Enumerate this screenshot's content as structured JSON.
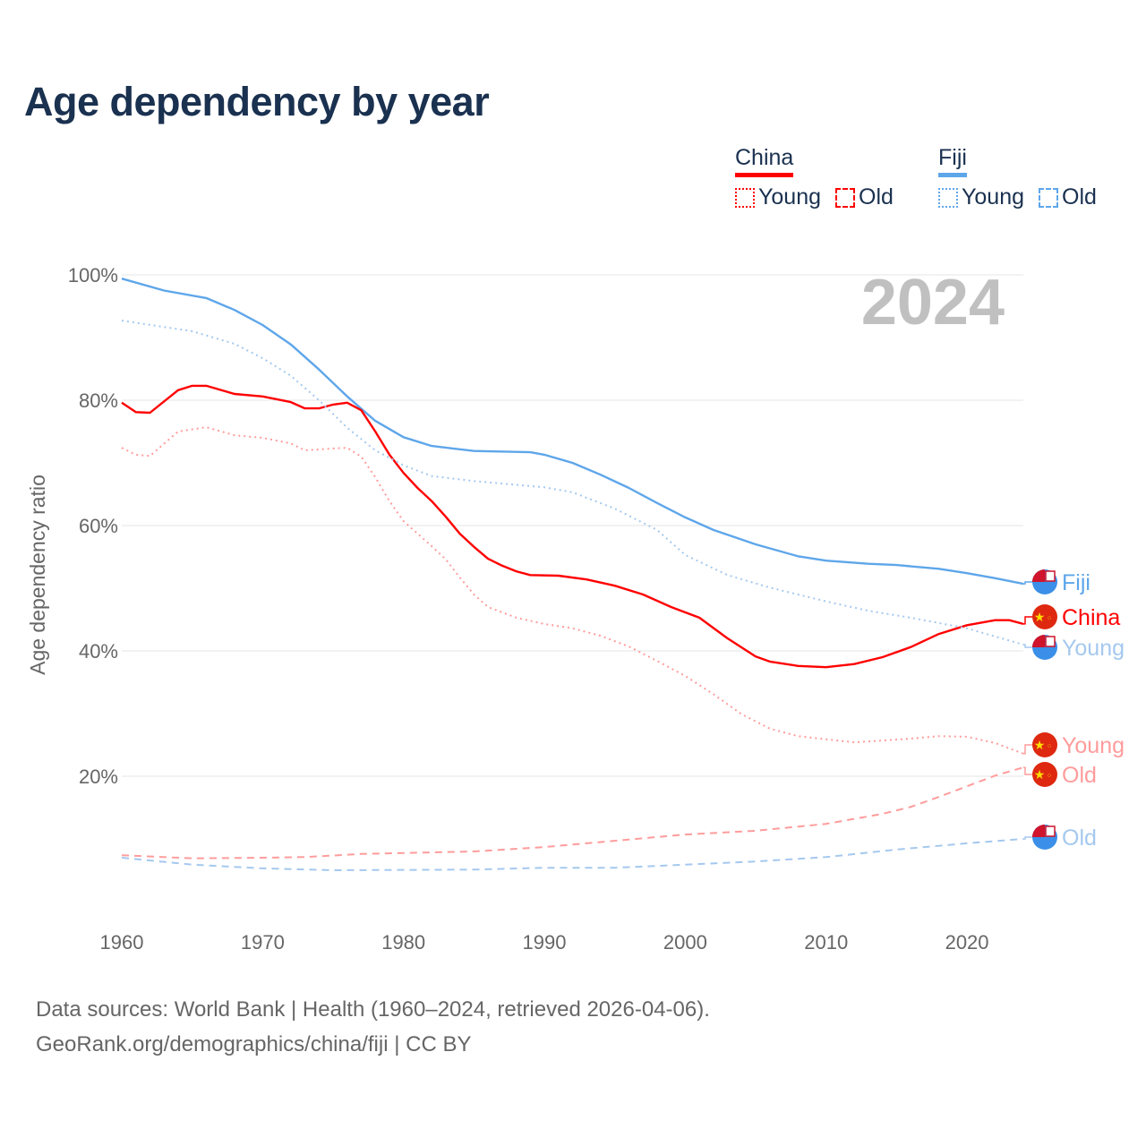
{
  "title": "Age dependency by year",
  "legend": {
    "groups": [
      {
        "name": "China",
        "color": "#ff0000",
        "light": "#ff9c9c",
        "items": [
          "Young",
          "Old"
        ]
      },
      {
        "name": "Fiji",
        "color": "#5ea6ea",
        "light": "#a5c8ef",
        "items": [
          "Young",
          "Old"
        ]
      }
    ]
  },
  "source": {
    "line1": "Data sources: World Bank | Health (1960–2024, retrieved 2026-04-06).",
    "line2": "GeoRank.org/demographics/china/fiji | CC BY"
  },
  "chart_data": {
    "type": "line",
    "title": "Age dependency by year",
    "xlabel": "",
    "ylabel": "Age dependency ratio",
    "xlim": [
      1960,
      2024
    ],
    "ylim": [
      0,
      100
    ],
    "x_ticks": [
      "1960",
      "1970",
      "1980",
      "1990",
      "2000",
      "2010",
      "2020"
    ],
    "y_ticks": [
      "20%",
      "40%",
      "60%",
      "80%",
      "100%"
    ],
    "grid": true,
    "year_watermark": "2024",
    "series": [
      {
        "name": "Fiji",
        "country": "Fiji",
        "label": "Fiji",
        "style": "solid",
        "color": "#5ea6ea",
        "points": [
          [
            1960,
            99.4
          ],
          [
            1963,
            97.5
          ],
          [
            1966,
            96.3
          ],
          [
            1968,
            94.4
          ],
          [
            1970,
            92
          ],
          [
            1972,
            88.9
          ],
          [
            1974,
            84.9
          ],
          [
            1976,
            80.6
          ],
          [
            1978,
            76.7
          ],
          [
            1980,
            74.1
          ],
          [
            1982,
            72.7
          ],
          [
            1985,
            71.9
          ],
          [
            1989,
            71.7
          ],
          [
            1990,
            71.3
          ],
          [
            1992,
            70
          ],
          [
            1994,
            68.1
          ],
          [
            1996,
            66
          ],
          [
            1998,
            63.6
          ],
          [
            2000,
            61.3
          ],
          [
            2002,
            59.3
          ],
          [
            2005,
            57
          ],
          [
            2008,
            55.1
          ],
          [
            2010,
            54.4
          ],
          [
            2013,
            53.9
          ],
          [
            2015,
            53.7
          ],
          [
            2018,
            53.1
          ],
          [
            2020,
            52.4
          ],
          [
            2022,
            51.6
          ],
          [
            2024,
            50.7
          ]
        ]
      },
      {
        "name": "China",
        "country": "China",
        "label": "China",
        "style": "solid",
        "color": "#ff0000",
        "points": [
          [
            1960,
            79.6
          ],
          [
            1961,
            78.1
          ],
          [
            1962,
            78
          ],
          [
            1964,
            81.6
          ],
          [
            1965,
            82.3
          ],
          [
            1966,
            82.3
          ],
          [
            1968,
            81
          ],
          [
            1970,
            80.6
          ],
          [
            1972,
            79.7
          ],
          [
            1973,
            78.7
          ],
          [
            1974,
            78.7
          ],
          [
            1975,
            79.3
          ],
          [
            1976,
            79.6
          ],
          [
            1977,
            78.4
          ],
          [
            1978,
            75
          ],
          [
            1979,
            71.3
          ],
          [
            1980,
            68.4
          ],
          [
            1981,
            66
          ],
          [
            1982,
            63.9
          ],
          [
            1983,
            61.4
          ],
          [
            1984,
            58.7
          ],
          [
            1985,
            56.6
          ],
          [
            1986,
            54.7
          ],
          [
            1987,
            53.6
          ],
          [
            1988,
            52.7
          ],
          [
            1989,
            52.1
          ],
          [
            1991,
            52
          ],
          [
            1993,
            51.4
          ],
          [
            1995,
            50.4
          ],
          [
            1997,
            49
          ],
          [
            1999,
            47
          ],
          [
            2001,
            45.3
          ],
          [
            2003,
            42
          ],
          [
            2005,
            39.1
          ],
          [
            2006,
            38.3
          ],
          [
            2008,
            37.6
          ],
          [
            2010,
            37.4
          ],
          [
            2012,
            37.9
          ],
          [
            2014,
            39
          ],
          [
            2016,
            40.6
          ],
          [
            2018,
            42.7
          ],
          [
            2020,
            44.1
          ],
          [
            2022,
            44.9
          ],
          [
            2023,
            44.9
          ],
          [
            2024,
            44.3
          ]
        ]
      },
      {
        "name": "Fiji Young",
        "country": "Fiji",
        "label": "Young",
        "style": "dotted",
        "color": "#a5c8ef",
        "points": [
          [
            1960,
            92.7
          ],
          [
            1965,
            91
          ],
          [
            1968,
            89
          ],
          [
            1970,
            86.7
          ],
          [
            1972,
            83.9
          ],
          [
            1974,
            80
          ],
          [
            1976,
            75.6
          ],
          [
            1978,
            72
          ],
          [
            1980,
            69.6
          ],
          [
            1982,
            67.9
          ],
          [
            1985,
            67.1
          ],
          [
            1990,
            66.1
          ],
          [
            1992,
            65.3
          ],
          [
            1995,
            62.7
          ],
          [
            1998,
            59.3
          ],
          [
            2000,
            55.3
          ],
          [
            2003,
            52.1
          ],
          [
            2006,
            50.1
          ],
          [
            2010,
            47.9
          ],
          [
            2013,
            46.4
          ],
          [
            2016,
            45.3
          ],
          [
            2020,
            43.6
          ],
          [
            2024,
            41
          ]
        ]
      },
      {
        "name": "China Young",
        "country": "China",
        "label": "Young",
        "style": "dotted",
        "color": "#ff9c9c",
        "points": [
          [
            1960,
            72.4
          ],
          [
            1961,
            71.3
          ],
          [
            1962,
            71.1
          ],
          [
            1964,
            75
          ],
          [
            1966,
            75.7
          ],
          [
            1968,
            74.4
          ],
          [
            1970,
            74
          ],
          [
            1972,
            73.1
          ],
          [
            1973,
            72
          ],
          [
            1975,
            72.3
          ],
          [
            1976,
            72.4
          ],
          [
            1977,
            71
          ],
          [
            1978,
            67.7
          ],
          [
            1979,
            63.9
          ],
          [
            1980,
            60.7
          ],
          [
            1982,
            56.7
          ],
          [
            1983,
            54.6
          ],
          [
            1984,
            51.7
          ],
          [
            1985,
            49
          ],
          [
            1986,
            47
          ],
          [
            1988,
            45.3
          ],
          [
            1990,
            44.3
          ],
          [
            1992,
            43.6
          ],
          [
            1994,
            42.4
          ],
          [
            1996,
            40.7
          ],
          [
            1998,
            38.4
          ],
          [
            2000,
            36
          ],
          [
            2002,
            33.1
          ],
          [
            2004,
            29.9
          ],
          [
            2006,
            27.6
          ],
          [
            2008,
            26.4
          ],
          [
            2010,
            25.9
          ],
          [
            2012,
            25.4
          ],
          [
            2014,
            25.7
          ],
          [
            2016,
            26
          ],
          [
            2018,
            26.4
          ],
          [
            2020,
            26.3
          ],
          [
            2022,
            25.3
          ],
          [
            2024,
            23.6
          ]
        ]
      },
      {
        "name": "China Old",
        "country": "China",
        "label": "Old",
        "style": "dashed",
        "color": "#ff9c9c",
        "points": [
          [
            1960,
            7.4
          ],
          [
            1965,
            6.9
          ],
          [
            1970,
            7
          ],
          [
            1973,
            7.1
          ],
          [
            1977,
            7.6
          ],
          [
            1985,
            8
          ],
          [
            1990,
            8.7
          ],
          [
            1995,
            9.7
          ],
          [
            2000,
            10.7
          ],
          [
            2005,
            11.3
          ],
          [
            2010,
            12.4
          ],
          [
            2014,
            14
          ],
          [
            2016,
            15.1
          ],
          [
            2018,
            16.7
          ],
          [
            2020,
            18.4
          ],
          [
            2022,
            20.1
          ],
          [
            2024,
            21.4
          ]
        ]
      },
      {
        "name": "Fiji Old",
        "country": "Fiji",
        "label": "Old",
        "style": "dashed",
        "color": "#a5c8ef",
        "points": [
          [
            1960,
            7
          ],
          [
            1965,
            5.9
          ],
          [
            1970,
            5.3
          ],
          [
            1975,
            5
          ],
          [
            1985,
            5.1
          ],
          [
            1990,
            5.4
          ],
          [
            1995,
            5.4
          ],
          [
            2000,
            5.9
          ],
          [
            2005,
            6.4
          ],
          [
            2010,
            7.1
          ],
          [
            2015,
            8.3
          ],
          [
            2020,
            9.3
          ],
          [
            2024,
            10
          ]
        ]
      }
    ]
  }
}
